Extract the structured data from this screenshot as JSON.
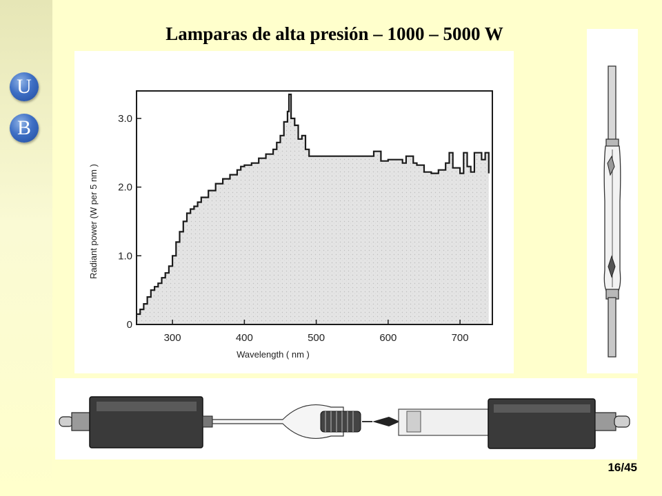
{
  "title": "Lamparas de alta presión – 1000 – 5000 W",
  "logo": {
    "letter_top": "U",
    "letter_bottom": "B",
    "color": "#3E6FC4"
  },
  "page_number": "16/45",
  "chart_data": {
    "type": "area",
    "title": "",
    "xlabel": "Wavelength ( nm )",
    "ylabel": "Radiant power (W per 5 nm )",
    "xlim": [
      250,
      745
    ],
    "ylim": [
      0,
      3.4
    ],
    "x_ticks": [
      300,
      400,
      500,
      600,
      700
    ],
    "x_tick_labels": [
      "300",
      "400",
      "500",
      "600",
      "700"
    ],
    "y_ticks": [
      0,
      1.0,
      2.0,
      3.0
    ],
    "y_tick_labels": [
      "0",
      "1.0",
      "2.0",
      "3.0"
    ],
    "grid": false,
    "series": [
      {
        "x": [
          250,
          255,
          260,
          265,
          270,
          275,
          280,
          285,
          290,
          295,
          300,
          305,
          310,
          315,
          320,
          325,
          330,
          335,
          340,
          350,
          360,
          370,
          380,
          390,
          395,
          400,
          410,
          420,
          430,
          440,
          445,
          450,
          455,
          460,
          462,
          465,
          470,
          475,
          480,
          485,
          490,
          495,
          500,
          520,
          540,
          560,
          575,
          580,
          590,
          600,
          620,
          625,
          635,
          640,
          650,
          660,
          670,
          680,
          685,
          690,
          700,
          705,
          710,
          715,
          720,
          730,
          735,
          740
        ],
        "y": [
          0.15,
          0.22,
          0.3,
          0.4,
          0.5,
          0.55,
          0.6,
          0.68,
          0.75,
          0.85,
          1.0,
          1.2,
          1.35,
          1.5,
          1.62,
          1.68,
          1.72,
          1.78,
          1.85,
          1.95,
          2.05,
          2.12,
          2.18,
          2.25,
          2.3,
          2.32,
          2.35,
          2.42,
          2.48,
          2.55,
          2.65,
          2.75,
          2.95,
          3.1,
          3.35,
          3.0,
          2.9,
          2.7,
          2.75,
          2.55,
          2.45,
          2.45,
          2.45,
          2.45,
          2.45,
          2.45,
          2.45,
          2.52,
          2.38,
          2.4,
          2.35,
          2.45,
          2.35,
          2.32,
          2.22,
          2.2,
          2.25,
          2.35,
          2.5,
          2.28,
          2.2,
          2.5,
          2.3,
          2.22,
          2.5,
          2.4,
          2.5,
          2.2
        ]
      }
    ]
  }
}
